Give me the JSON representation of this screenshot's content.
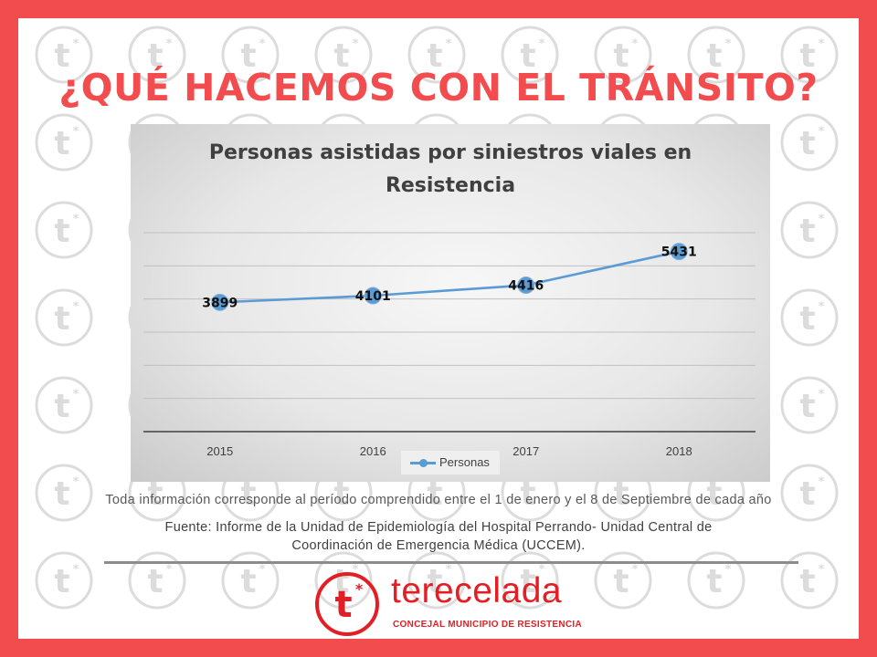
{
  "headline": "¿QUÉ HACEMOS CON EL TRÁNSITO?",
  "chart_data": {
    "type": "line",
    "title": "Personas asistidas por siniestros viales en Resistencia",
    "title_lines": [
      "Personas asistidas por siniestros viales en",
      "Resistencia"
    ],
    "categories": [
      "2015",
      "2016",
      "2017",
      "2018"
    ],
    "series": [
      {
        "name": "Personas",
        "values": [
          3899,
          4101,
          4416,
          5431
        ],
        "color": "#5b9bd5"
      }
    ],
    "data_labels": [
      "3899",
      "4101",
      "4416",
      "5431"
    ],
    "ylim": [
      0,
      6000
    ],
    "grid": true,
    "legend": "bottom",
    "xlabel": "",
    "ylabel": ""
  },
  "note": "Toda información corresponde al período comprendido entre el 1 de enero y el 8 de Septiembre de cada año",
  "source_lines": [
    "Fuente: Informe de la Unidad de Epidemiología del Hospital Perrando- Unidad Central de",
    "Coordinación de Emergencia Médica (UCCEM)."
  ],
  "brand": {
    "logo_text": "t",
    "name": "terecelada",
    "subtitle": "CONCEJAL MUNICIPIO DE RESISTENCIA",
    "color": "#e31e24"
  },
  "colors": {
    "frame": "#f24c4f",
    "accent": "#5b9bd5"
  }
}
